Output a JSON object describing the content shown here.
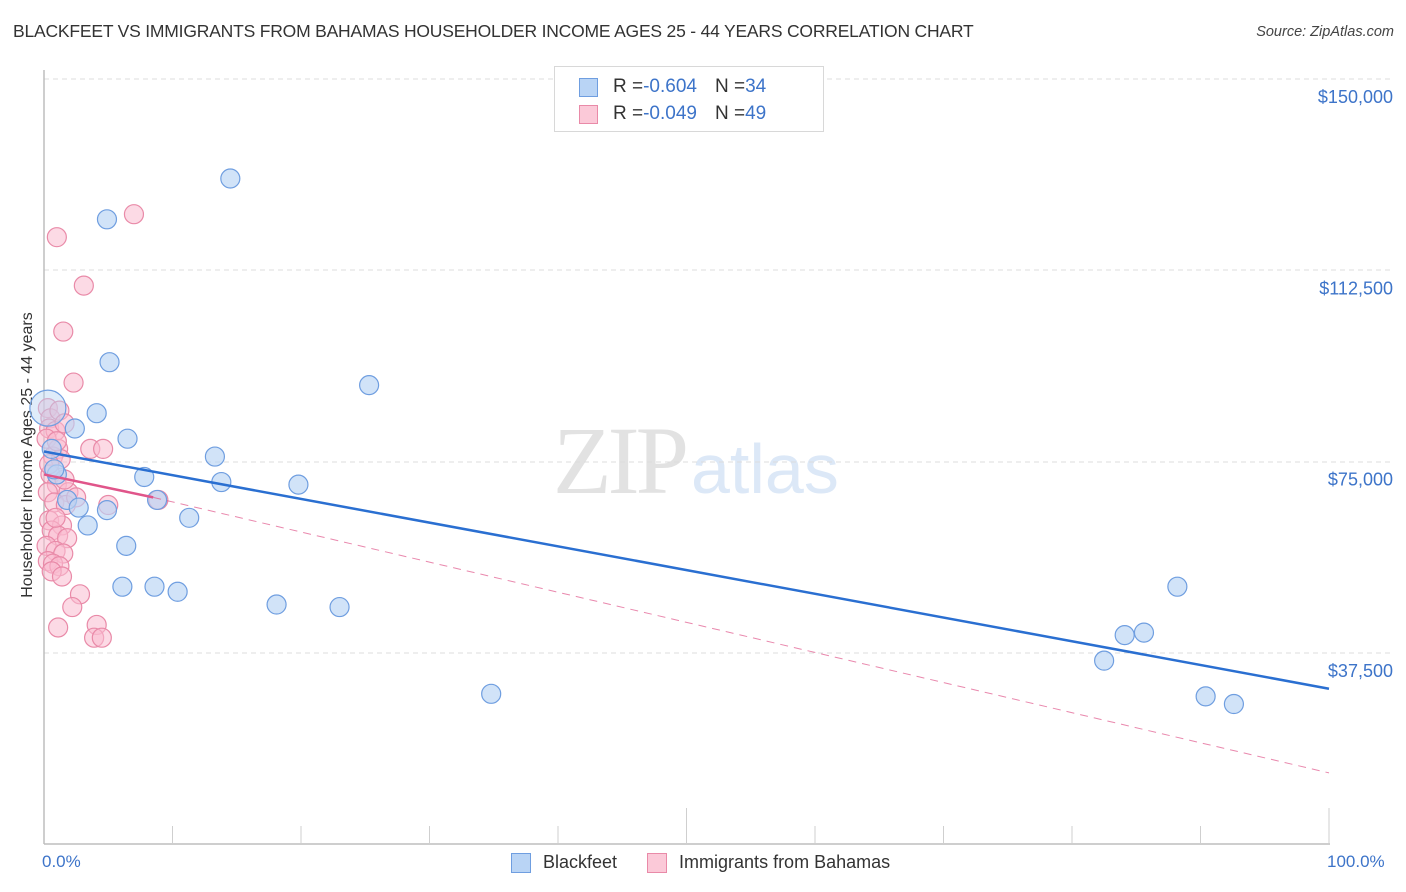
{
  "header": {
    "title": "BLACKFEET VS IMMIGRANTS FROM BAHAMAS HOUSEHOLDER INCOME AGES 25 - 44 YEARS CORRELATION CHART",
    "source": "Source: ZipAtlas.com"
  },
  "legend": {
    "rows": [
      {
        "r_label": "R = ",
        "r_value": "-0.604",
        "n_label": "N = ",
        "n_value": "34",
        "color": "#a9c9f2",
        "border": "#6f9ee0"
      },
      {
        "r_label": "R = ",
        "r_value": "-0.049",
        "n_label": "N = ",
        "n_value": "49",
        "color": "#f9c0d1",
        "border": "#e98aa8"
      }
    ]
  },
  "bottom_legend": {
    "items": [
      {
        "label": "Blackfeet",
        "color": "#b9d4f5",
        "border": "#6f9ee0"
      },
      {
        "label": "Immigrants from Bahamas",
        "color": "#fbc9d8",
        "border": "#e98aa8"
      }
    ]
  },
  "axes": {
    "ylabel": "Householder Income Ages 25 - 44 years",
    "x_min_label": "0.0%",
    "x_max_label": "100.0%",
    "y_ticks": [
      "$150,000",
      "$112,500",
      "$75,000",
      "$37,500"
    ]
  },
  "watermark": {
    "zip": "ZIP",
    "atlas": "atlas"
  },
  "colors": {
    "blue_point_fill": "#b9d4f5",
    "blue_point_stroke": "#6f9ee0",
    "pink_point_fill": "#f9bccf",
    "pink_point_stroke": "#e98aa8",
    "blue_trend": "#2a6fd1",
    "pink_trend": "#e0558a",
    "tick_label": "#3d74c9"
  },
  "chart_data": {
    "type": "scatter",
    "title": "BLACKFEET VS IMMIGRANTS FROM BAHAMAS HOUSEHOLDER INCOME AGES 25 - 44 YEARS CORRELATION CHART",
    "xlabel": "",
    "ylabel": "Householder Income Ages 25 - 44 years",
    "xlim": [
      0,
      100
    ],
    "ylim": [
      0,
      155000
    ],
    "x_tick_labels": [
      "0.0%",
      "100.0%"
    ],
    "y_ticks": [
      37500,
      75000,
      112500,
      150000
    ],
    "grid": "horizontal dashed",
    "legend_position": "top-center",
    "series": [
      {
        "name": "Blackfeet",
        "r": -0.604,
        "n": 34,
        "color": "#6f9ee0",
        "points": [
          [
            0.3,
            85000
          ],
          [
            0.6,
            77500
          ],
          [
            1.0,
            72500
          ],
          [
            1.8,
            67500
          ],
          [
            2.4,
            81500
          ],
          [
            2.7,
            66000
          ],
          [
            4.1,
            84500
          ],
          [
            3.4,
            62500
          ],
          [
            4.9,
            65500
          ],
          [
            5.1,
            94500
          ],
          [
            6.5,
            79500
          ],
          [
            6.4,
            58500
          ],
          [
            6.1,
            50500
          ],
          [
            7.8,
            72000
          ],
          [
            8.6,
            50500
          ],
          [
            8.8,
            67500
          ],
          [
            10.4,
            49500
          ],
          [
            11.3,
            64000
          ],
          [
            13.3,
            76000
          ],
          [
            13.8,
            71000
          ],
          [
            14.5,
            130500
          ],
          [
            4.9,
            122500
          ],
          [
            18.1,
            47000
          ],
          [
            19.8,
            70500
          ],
          [
            23.0,
            46500
          ],
          [
            25.3,
            90000
          ],
          [
            34.8,
            29500
          ],
          [
            82.5,
            36000
          ],
          [
            84.1,
            41000
          ],
          [
            85.6,
            41500
          ],
          [
            88.2,
            50500
          ],
          [
            90.4,
            29000
          ],
          [
            92.6,
            27500
          ],
          [
            0.8,
            73500
          ]
        ],
        "trendline": {
          "x0": 0,
          "y0": 77000,
          "x1": 100,
          "y1": 30500,
          "style": "solid"
        }
      },
      {
        "name": "Immigrants from Bahamas",
        "r": -0.049,
        "n": 49,
        "color": "#e98aa8",
        "points": [
          [
            1.0,
            119000
          ],
          [
            7.0,
            123500
          ],
          [
            3.1,
            109500
          ],
          [
            1.5,
            100500
          ],
          [
            2.3,
            90500
          ],
          [
            0.3,
            85500
          ],
          [
            0.5,
            83500
          ],
          [
            1.2,
            85000
          ],
          [
            0.4,
            81500
          ],
          [
            0.9,
            81000
          ],
          [
            1.6,
            82500
          ],
          [
            0.2,
            79500
          ],
          [
            1.1,
            77500
          ],
          [
            0.7,
            76000
          ],
          [
            1.3,
            75500
          ],
          [
            3.6,
            77500
          ],
          [
            4.6,
            77500
          ],
          [
            0.5,
            72500
          ],
          [
            1.0,
            70500
          ],
          [
            0.3,
            69000
          ],
          [
            1.9,
            69000
          ],
          [
            0.8,
            67000
          ],
          [
            1.7,
            66500
          ],
          [
            0.4,
            63500
          ],
          [
            1.4,
            62500
          ],
          [
            0.6,
            61500
          ],
          [
            1.1,
            60500
          ],
          [
            1.8,
            60000
          ],
          [
            0.2,
            58500
          ],
          [
            0.9,
            57500
          ],
          [
            1.5,
            57000
          ],
          [
            0.3,
            55500
          ],
          [
            0.7,
            55000
          ],
          [
            1.2,
            54500
          ],
          [
            0.6,
            53500
          ],
          [
            1.4,
            52500
          ],
          [
            2.8,
            49000
          ],
          [
            2.2,
            46500
          ],
          [
            1.1,
            42500
          ],
          [
            4.1,
            43000
          ],
          [
            3.9,
            40500
          ],
          [
            4.5,
            40500
          ],
          [
            0.9,
            64000
          ],
          [
            1.6,
            71500
          ],
          [
            2.5,
            68000
          ],
          [
            0.4,
            74500
          ],
          [
            1.0,
            79000
          ],
          [
            5.0,
            66500
          ],
          [
            8.9,
            67500
          ]
        ],
        "trendline_solid": {
          "x0": 0,
          "y0": 72500,
          "x1": 8.5,
          "y1": 68000
        },
        "trendline_dashed": {
          "x0": 8.5,
          "y0": 68000,
          "x1": 100,
          "y1": 14000
        }
      }
    ]
  }
}
